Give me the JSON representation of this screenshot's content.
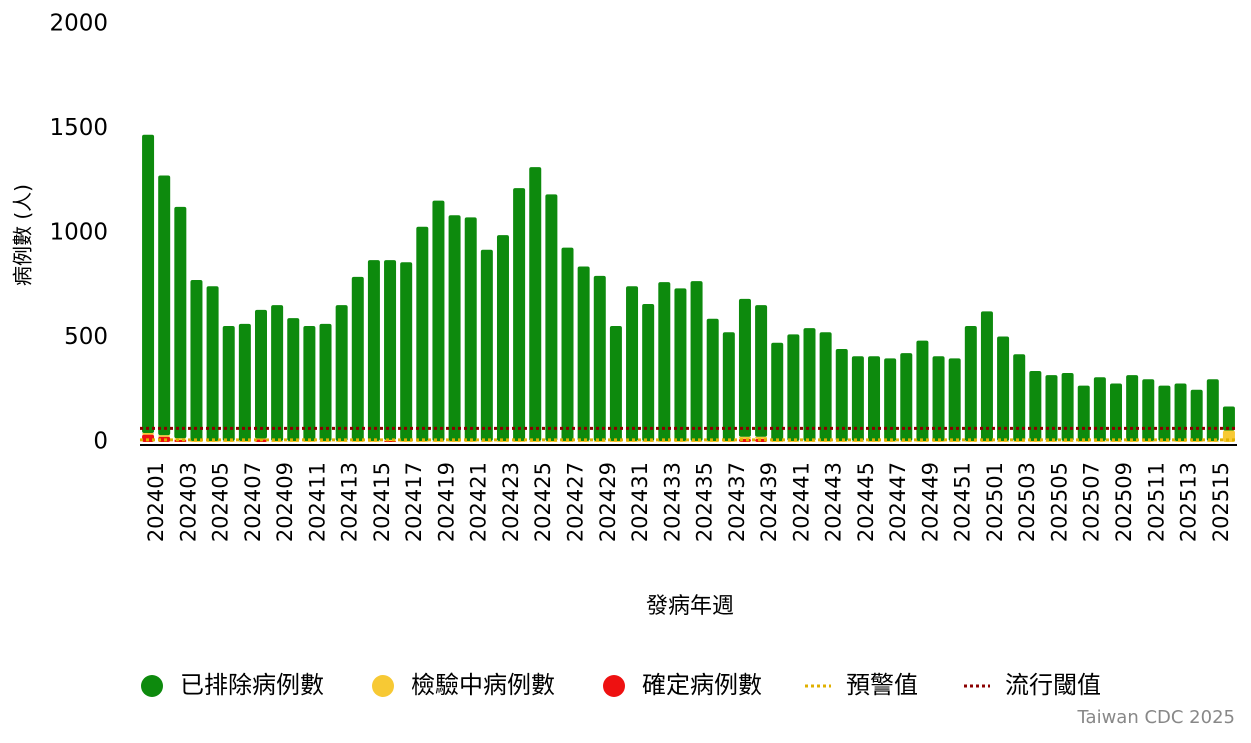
{
  "chart_data": {
    "type": "bar",
    "stacked": true,
    "x_label": "發病年週",
    "y_label": "病例數 (人)",
    "credit": "Taiwan CDC 2025",
    "categories": [
      "202401",
      null,
      "202403",
      null,
      "202405",
      null,
      "202407",
      null,
      "202409",
      null,
      "202411",
      null,
      "202413",
      null,
      "202415",
      null,
      "202417",
      null,
      "202419",
      null,
      "202421",
      null,
      "202423",
      null,
      "202425",
      null,
      "202427",
      null,
      "202429",
      null,
      "202431",
      null,
      "202433",
      null,
      "202435",
      null,
      "202437",
      null,
      "202439",
      null,
      "202441",
      null,
      "202443",
      null,
      "202445",
      null,
      "202447",
      null,
      "202449",
      null,
      "202451",
      null,
      "202501",
      null,
      "202503",
      null,
      "202505",
      null,
      "202507",
      null,
      "202509",
      null,
      "202511",
      null,
      "202513",
      null,
      "202515",
      null
    ],
    "series": [
      {
        "name": "確定病例數",
        "color": "#ee1111",
        "values": [
          35,
          25,
          10,
          0,
          0,
          0,
          0,
          12,
          0,
          0,
          0,
          0,
          0,
          0,
          0,
          5,
          0,
          0,
          0,
          0,
          0,
          0,
          0,
          0,
          0,
          0,
          0,
          0,
          0,
          0,
          0,
          0,
          0,
          0,
          0,
          0,
          0,
          15,
          15,
          0,
          0,
          0,
          0,
          0,
          0,
          0,
          0,
          0,
          0,
          0,
          0,
          0,
          0,
          0,
          0,
          0,
          0,
          0,
          0,
          0,
          0,
          0,
          0,
          0,
          0,
          0,
          0,
          0
        ]
      },
      {
        "name": "檢驗中病例數",
        "color": "#f7c934",
        "values": [
          8,
          8,
          8,
          5,
          5,
          5,
          5,
          5,
          5,
          5,
          5,
          5,
          5,
          5,
          5,
          5,
          5,
          5,
          5,
          5,
          5,
          5,
          5,
          5,
          5,
          5,
          5,
          5,
          5,
          5,
          5,
          5,
          5,
          5,
          5,
          5,
          5,
          10,
          10,
          5,
          5,
          5,
          5,
          5,
          5,
          5,
          5,
          5,
          5,
          5,
          5,
          5,
          5,
          5,
          5,
          5,
          5,
          5,
          5,
          5,
          5,
          5,
          5,
          5,
          5,
          5,
          5,
          55
        ]
      },
      {
        "name": "已排除病例數",
        "color": "#0d8a0d",
        "values": [
          1427,
          1242,
          1107,
          770,
          740,
          550,
          560,
          615,
          650,
          588,
          550,
          560,
          650,
          785,
          865,
          860,
          855,
          1025,
          1150,
          1080,
          1070,
          915,
          985,
          1210,
          1310,
          1180,
          925,
          835,
          790,
          550,
          740,
          655,
          760,
          730,
          765,
          585,
          520,
          660,
          630,
          470,
          510,
          540,
          520,
          440,
          405,
          405,
          395,
          420,
          480,
          405,
          395,
          550,
          620,
          500,
          415,
          335,
          315,
          325,
          265,
          305,
          275,
          315,
          295,
          265,
          275,
          245,
          295,
          115
        ]
      }
    ],
    "reference_lines": [
      {
        "name": "預警值",
        "color": "#e0b000",
        "value": 10
      },
      {
        "name": "流行閾值",
        "color": "#8b0000",
        "value": 65
      }
    ],
    "legend_order": [
      2,
      1,
      0
    ],
    "ylim": [
      0,
      2000
    ],
    "yticks": [
      0,
      500,
      1000,
      1500,
      2000
    ]
  }
}
